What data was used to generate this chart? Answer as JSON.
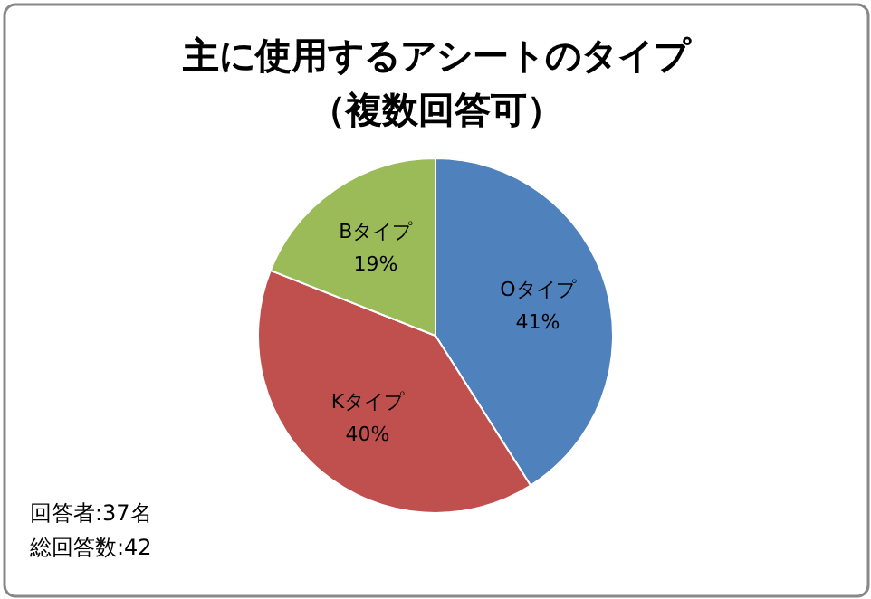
{
  "chart_data": {
    "type": "pie",
    "title": "主に使用するアシートのタイプ",
    "subtitle": "（複数回答可）",
    "categories": [
      "Oタイプ",
      "Kタイプ",
      "Bタイプ"
    ],
    "values": [
      41,
      40,
      19
    ],
    "value_labels": [
      "41%",
      "40%",
      "19%"
    ],
    "colors": [
      "#4f81bd",
      "#c0504d",
      "#9bbb59"
    ],
    "annotations": [
      "回答者:37名",
      "総回答数:42"
    ]
  }
}
